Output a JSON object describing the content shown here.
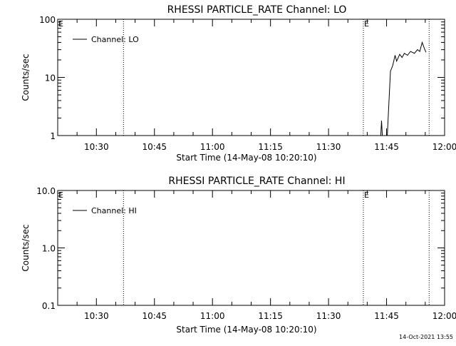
{
  "footer_timestamp": "14-Oct-2021 13:55",
  "chart_data": [
    {
      "type": "line",
      "title": "RHESSI PARTICLE_RATE Channel: LO",
      "xlabel": "Start Time (14-May-08 10:20:10)",
      "ylabel": "Counts/sec",
      "y_scale": "log",
      "ylim": [
        1,
        100
      ],
      "y_ticks": [
        {
          "value": 1,
          "label": "1"
        },
        {
          "value": 10,
          "label": "10"
        },
        {
          "value": 100,
          "label": "100"
        }
      ],
      "xlim": [
        "10:20",
        "12:00"
      ],
      "x_ticks": [
        "10:30",
        "10:45",
        "11:00",
        "11:15",
        "11:30",
        "11:45",
        "12:00"
      ],
      "grid": false,
      "legend": {
        "position": "top-left",
        "entries": [
          "Channel: LO"
        ]
      },
      "vertical_lines": [
        {
          "x": "10:37",
          "style": "dotted",
          "label": ""
        },
        {
          "x": "11:39",
          "style": "dotted",
          "label": "E"
        },
        {
          "x": "11:56",
          "style": "dotted",
          "label": ""
        }
      ],
      "corner_marks": [
        "E"
      ],
      "series": [
        {
          "name": "Channel: LO",
          "segments": [
            [
              [
                "11:43.5",
                1
              ],
              [
                "11:43.7",
                1.8
              ],
              [
                "11:43.9",
                1
              ]
            ],
            [
              [
                "11:45.2",
                1
              ],
              [
                "11:46.0",
                12.8
              ],
              [
                "11:46.6",
                16
              ],
              [
                "11:47.2",
                24
              ],
              [
                "11:47.6",
                19
              ],
              [
                "11:48.4",
                25
              ],
              [
                "11:49.0",
                22
              ],
              [
                "11:49.6",
                26
              ],
              [
                "11:50.4",
                24
              ],
              [
                "11:51.2",
                28
              ],
              [
                "11:52.2",
                26
              ],
              [
                "11:53.0",
                30
              ],
              [
                "11:53.6",
                28
              ],
              [
                "11:54.2",
                40
              ],
              [
                "11:54.8",
                31
              ],
              [
                "11:55.2",
                27
              ]
            ]
          ]
        }
      ]
    },
    {
      "type": "line",
      "title": "RHESSI PARTICLE_RATE Channel: HI",
      "xlabel": "Start Time (14-May-08 10:20:10)",
      "ylabel": "Counts/sec",
      "y_scale": "log",
      "ylim": [
        0.1,
        10
      ],
      "y_ticks": [
        {
          "value": 0.1,
          "label": "0.1"
        },
        {
          "value": 1,
          "label": "1.0"
        },
        {
          "value": 10,
          "label": "10.0"
        }
      ],
      "xlim": [
        "10:20",
        "12:00"
      ],
      "x_ticks": [
        "10:30",
        "10:45",
        "11:00",
        "11:15",
        "11:30",
        "11:45",
        "12:00"
      ],
      "grid": false,
      "legend": {
        "position": "top-left",
        "entries": [
          "Channel: HI"
        ]
      },
      "vertical_lines": [
        {
          "x": "10:37",
          "style": "dotted",
          "label": ""
        },
        {
          "x": "11:39",
          "style": "dotted",
          "label": "E"
        },
        {
          "x": "11:56",
          "style": "dotted",
          "label": ""
        }
      ],
      "corner_marks": [
        "E"
      ],
      "series": [
        {
          "name": "Channel: HI",
          "segments": []
        }
      ]
    }
  ]
}
